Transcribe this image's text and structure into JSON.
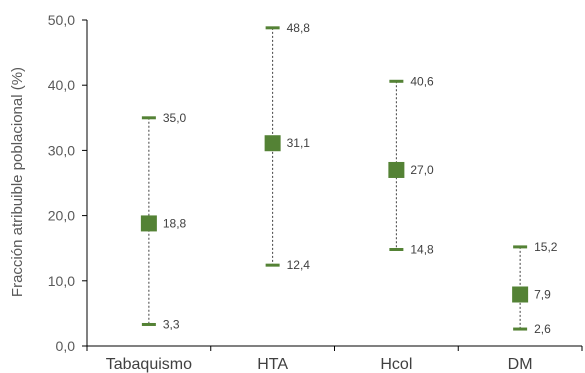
{
  "chart_data": {
    "type": "scatter",
    "title": "",
    "ylabel": "Fracción atribuible poblacional (%)",
    "xlabel": "",
    "ylim": [
      0,
      50
    ],
    "yticks": [
      "0,0",
      "10,0",
      "20,0",
      "30,0",
      "40,0",
      "50,0"
    ],
    "categories": [
      "Tabaquismo",
      "HTA",
      "Hcol",
      "DM"
    ],
    "points": [
      {
        "estimate": 18.8,
        "lower": 3.3,
        "upper": 35.0,
        "estimate_label": "18,8",
        "lower_label": "3,3",
        "upper_label": "35,0"
      },
      {
        "estimate": 31.1,
        "lower": 12.4,
        "upper": 48.8,
        "estimate_label": "31,1",
        "lower_label": "12,4",
        "upper_label": "48,8"
      },
      {
        "estimate": 27.0,
        "lower": 14.8,
        "upper": 40.6,
        "estimate_label": "27,0",
        "lower_label": "14,8",
        "upper_label": "40,6"
      },
      {
        "estimate": 7.9,
        "lower": 2.6,
        "upper": 15.2,
        "estimate_label": "7,9",
        "lower_label": "2,6",
        "upper_label": "15,2"
      }
    ],
    "colors": {
      "marker": "#548235",
      "whisker": "#404040",
      "axis": "#000000"
    },
    "grid": false,
    "legend": "none"
  }
}
